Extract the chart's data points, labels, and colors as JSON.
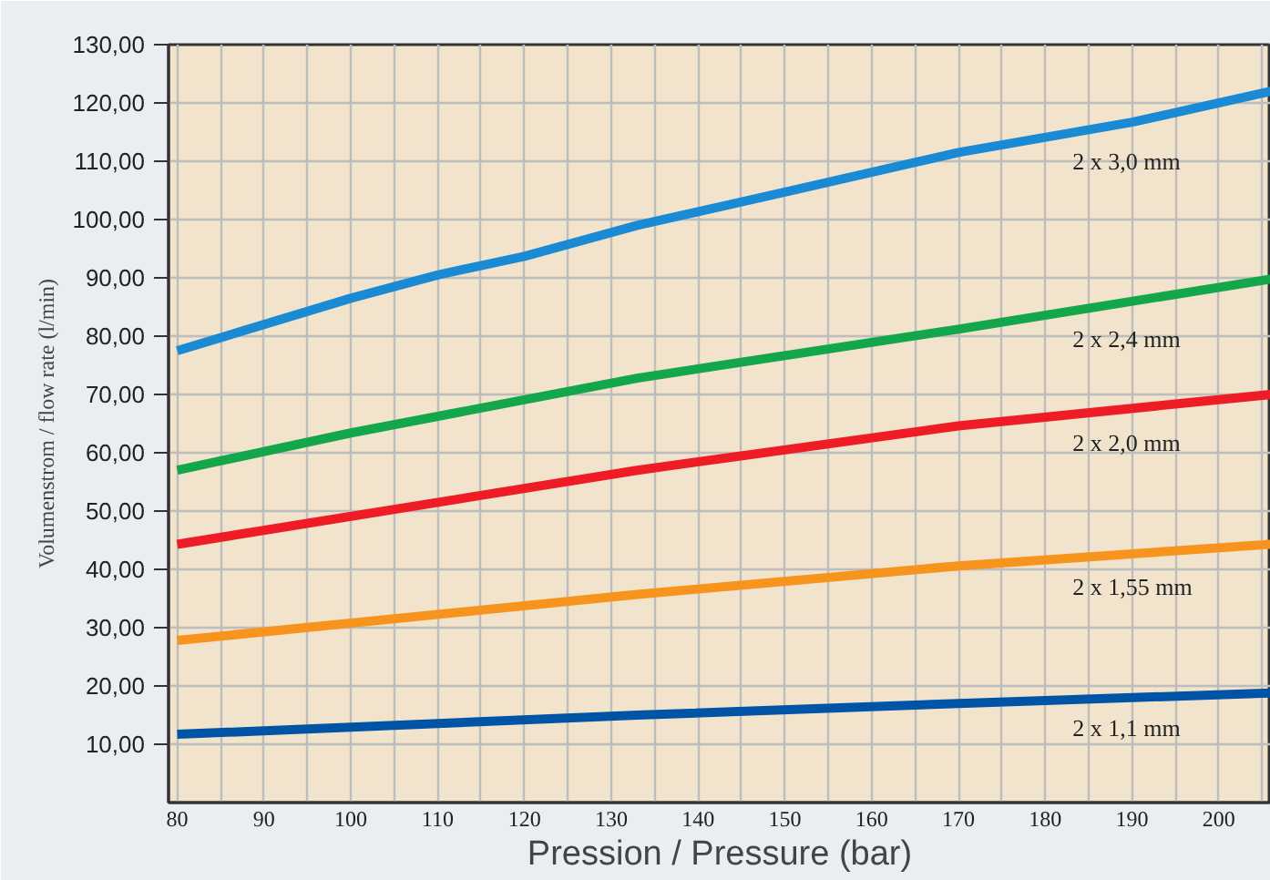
{
  "chart_data": {
    "type": "line",
    "xlabel": "Pression / Pressure (bar)",
    "ylabel": "Volumenstrom / flow rate (l/min)",
    "xlim": [
      79,
      206
    ],
    "ylim": [
      0,
      130
    ],
    "xticks": [
      80,
      90,
      100,
      110,
      120,
      130,
      140,
      150,
      160,
      170,
      180,
      190,
      200
    ],
    "yticks": [
      {
        "value": 10,
        "label": "10,00"
      },
      {
        "value": 20,
        "label": "20,00"
      },
      {
        "value": 30,
        "label": "30,00"
      },
      {
        "value": 40,
        "label": "40,00"
      },
      {
        "value": 50,
        "label": "50,00"
      },
      {
        "value": 60,
        "label": "60,00"
      },
      {
        "value": 70,
        "label": "70,00"
      },
      {
        "value": 80,
        "label": "80,00"
      },
      {
        "value": 90,
        "label": "90,00"
      },
      {
        "value": 100,
        "label": "100,00"
      },
      {
        "value": 110,
        "label": "110,00"
      },
      {
        "value": 120,
        "label": "120,00"
      },
      {
        "value": 130,
        "label": "130,00"
      }
    ],
    "grid": true,
    "legend": false,
    "marker": "none",
    "line_style": "solid",
    "series": [
      {
        "name": "2 x 3,0 mm",
        "color": "#1a8ad4",
        "x": [
          80,
          100,
          110,
          120,
          133,
          150,
          170,
          190,
          206
        ],
        "values": [
          77.5,
          86.5,
          90.5,
          93.7,
          99,
          104.7,
          111.5,
          116.7,
          122
        ]
      },
      {
        "name": "2 x 2,4 mm",
        "color": "#13a64a",
        "x": [
          80,
          100,
          133,
          170,
          206
        ],
        "values": [
          57,
          63.4,
          72.8,
          81.2,
          89.8
        ]
      },
      {
        "name": "2 x 2,0 mm",
        "color": "#ee1c25",
        "x": [
          80,
          133,
          170,
          206
        ],
        "values": [
          44.3,
          57,
          64.6,
          70
        ]
      },
      {
        "name": "2 x 1,55 mm",
        "color": "#f7941d",
        "x": [
          80,
          133,
          170,
          206
        ],
        "values": [
          27.8,
          35.7,
          40.6,
          44.3
        ]
      },
      {
        "name": "2 x 1,1 mm",
        "color": "#0054a6",
        "x": [
          80,
          133,
          170,
          206
        ],
        "values": [
          11.7,
          15,
          17,
          18.8
        ]
      }
    ]
  }
}
